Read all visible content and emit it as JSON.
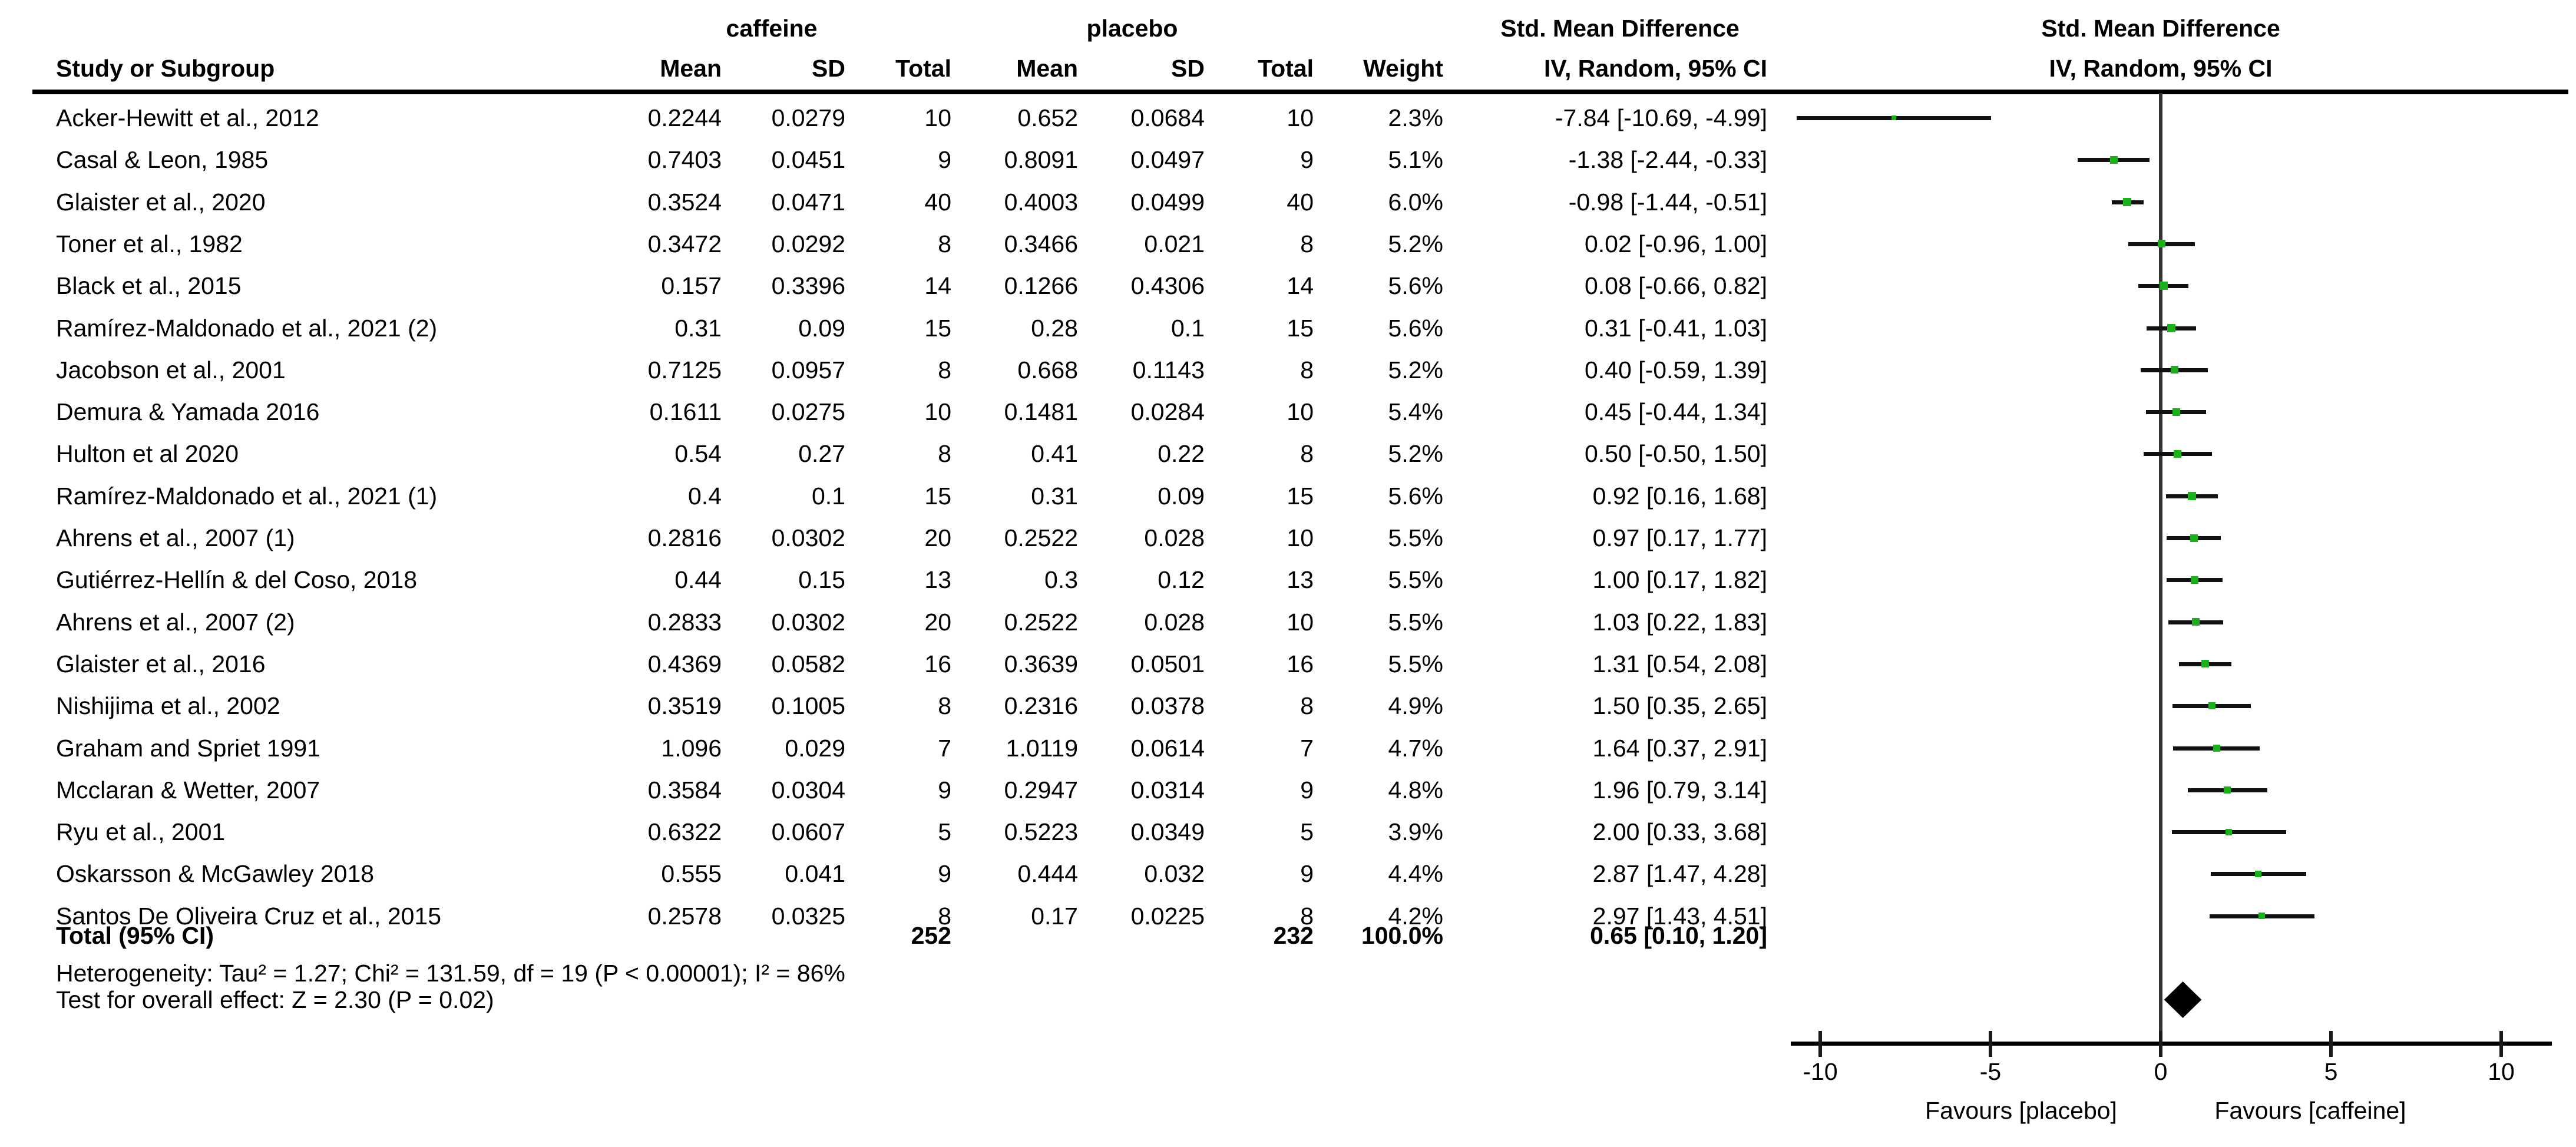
{
  "figure": {
    "col_headers": {
      "study": "Study or Subgroup",
      "mean": "Mean",
      "sd": "SD",
      "total": "Total",
      "weight": "Weight"
    },
    "group1_label": "caffeine",
    "group2_label": "placebo",
    "smd_label": "Std. Mean Difference",
    "method_label": "IV, Random, 95% CI",
    "heterogeneity": "Heterogeneity: Tau² = 1.27; Chi² = 131.59, df = 19 (P < 0.00001); I² = 86%",
    "overall_effect": "Test for overall effect: Z = 2.30 (P = 0.02)"
  },
  "plot": {
    "axis_ticks": [
      "-10",
      "-5",
      "0",
      "5",
      "10"
    ],
    "tick_values": [
      -10,
      -5,
      0,
      5,
      10
    ],
    "favours_left": "Favours [placebo]",
    "favours_right": "Favours [caffeine]",
    "marker_color": "#1bb11b",
    "line_color": "#111111",
    "diamond_color": "#000000"
  },
  "chart_data": {
    "type": "scatter",
    "note": "forest plot (meta-analysis, std. mean difference with 95% CI)",
    "title": "Std. Mean Difference — IV, Random, 95% CI (caffeine vs placebo)",
    "xlim": [
      -10,
      10
    ],
    "xticks": [
      -10,
      -5,
      0,
      5,
      10
    ],
    "xlabel_left": "Favours [placebo]",
    "xlabel_right": "Favours [caffeine]",
    "studies": [
      {
        "name": "Acker-Hewitt et al., 2012",
        "c_mean": "0.2244",
        "c_sd": "0.0279",
        "c_total": "10",
        "p_mean": "0.652",
        "p_sd": "0.0684",
        "p_total": "10",
        "weight": "2.3%",
        "ci": "-7.84 [-10.69, -4.99]",
        "est": -7.84,
        "lo": -10.69,
        "hi": -4.99
      },
      {
        "name": "Casal & Leon, 1985",
        "c_mean": "0.7403",
        "c_sd": "0.0451",
        "c_total": "9",
        "p_mean": "0.8091",
        "p_sd": "0.0497",
        "p_total": "9",
        "weight": "5.1%",
        "ci": "-1.38 [-2.44, -0.33]",
        "est": -1.38,
        "lo": -2.44,
        "hi": -0.33
      },
      {
        "name": "Glaister et al., 2020",
        "c_mean": "0.3524",
        "c_sd": "0.0471",
        "c_total": "40",
        "p_mean": "0.4003",
        "p_sd": "0.0499",
        "p_total": "40",
        "weight": "6.0%",
        "ci": "-0.98 [-1.44, -0.51]",
        "est": -0.98,
        "lo": -1.44,
        "hi": -0.51
      },
      {
        "name": "Toner et al., 1982",
        "c_mean": "0.3472",
        "c_sd": "0.0292",
        "c_total": "8",
        "p_mean": "0.3466",
        "p_sd": "0.021",
        "p_total": "8",
        "weight": "5.2%",
        "ci": "0.02 [-0.96, 1.00]",
        "est": 0.02,
        "lo": -0.96,
        "hi": 1.0
      },
      {
        "name": "Black et al., 2015",
        "c_mean": "0.157",
        "c_sd": "0.3396",
        "c_total": "14",
        "p_mean": "0.1266",
        "p_sd": "0.4306",
        "p_total": "14",
        "weight": "5.6%",
        "ci": "0.08 [-0.66, 0.82]",
        "est": 0.08,
        "lo": -0.66,
        "hi": 0.82
      },
      {
        "name": "Ramírez-Maldonado et al., 2021 (2)",
        "c_mean": "0.31",
        "c_sd": "0.09",
        "c_total": "15",
        "p_mean": "0.28",
        "p_sd": "0.1",
        "p_total": "15",
        "weight": "5.6%",
        "ci": "0.31 [-0.41, 1.03]",
        "est": 0.31,
        "lo": -0.41,
        "hi": 1.03
      },
      {
        "name": "Jacobson et al., 2001",
        "c_mean": "0.7125",
        "c_sd": "0.0957",
        "c_total": "8",
        "p_mean": "0.668",
        "p_sd": "0.1143",
        "p_total": "8",
        "weight": "5.2%",
        "ci": "0.40 [-0.59, 1.39]",
        "est": 0.4,
        "lo": -0.59,
        "hi": 1.39
      },
      {
        "name": "Demura & Yamada 2016",
        "c_mean": "0.1611",
        "c_sd": "0.0275",
        "c_total": "10",
        "p_mean": "0.1481",
        "p_sd": "0.0284",
        "p_total": "10",
        "weight": "5.4%",
        "ci": "0.45 [-0.44, 1.34]",
        "est": 0.45,
        "lo": -0.44,
        "hi": 1.34
      },
      {
        "name": "Hulton et al 2020",
        "c_mean": "0.54",
        "c_sd": "0.27",
        "c_total": "8",
        "p_mean": "0.41",
        "p_sd": "0.22",
        "p_total": "8",
        "weight": "5.2%",
        "ci": "0.50 [-0.50, 1.50]",
        "est": 0.5,
        "lo": -0.5,
        "hi": 1.5
      },
      {
        "name": "Ramírez-Maldonado et al., 2021 (1)",
        "c_mean": "0.4",
        "c_sd": "0.1",
        "c_total": "15",
        "p_mean": "0.31",
        "p_sd": "0.09",
        "p_total": "15",
        "weight": "5.6%",
        "ci": "0.92 [0.16, 1.68]",
        "est": 0.92,
        "lo": 0.16,
        "hi": 1.68
      },
      {
        "name": "Ahrens et al., 2007 (1)",
        "c_mean": "0.2816",
        "c_sd": "0.0302",
        "c_total": "20",
        "p_mean": "0.2522",
        "p_sd": "0.028",
        "p_total": "10",
        "weight": "5.5%",
        "ci": "0.97 [0.17, 1.77]",
        "est": 0.97,
        "lo": 0.17,
        "hi": 1.77
      },
      {
        "name": "Gutiérrez-Hellín & del Coso, 2018",
        "c_mean": "0.44",
        "c_sd": "0.15",
        "c_total": "13",
        "p_mean": "0.3",
        "p_sd": "0.12",
        "p_total": "13",
        "weight": "5.5%",
        "ci": "1.00 [0.17, 1.82]",
        "est": 1.0,
        "lo": 0.17,
        "hi": 1.82
      },
      {
        "name": "Ahrens et al., 2007 (2)",
        "c_mean": "0.2833",
        "c_sd": "0.0302",
        "c_total": "20",
        "p_mean": "0.2522",
        "p_sd": "0.028",
        "p_total": "10",
        "weight": "5.5%",
        "ci": "1.03 [0.22, 1.83]",
        "est": 1.03,
        "lo": 0.22,
        "hi": 1.83
      },
      {
        "name": "Glaister et al., 2016",
        "c_mean": "0.4369",
        "c_sd": "0.0582",
        "c_total": "16",
        "p_mean": "0.3639",
        "p_sd": "0.0501",
        "p_total": "16",
        "weight": "5.5%",
        "ci": "1.31 [0.54, 2.08]",
        "est": 1.31,
        "lo": 0.54,
        "hi": 2.08
      },
      {
        "name": "Nishijima et al., 2002",
        "c_mean": "0.3519",
        "c_sd": "0.1005",
        "c_total": "8",
        "p_mean": "0.2316",
        "p_sd": "0.0378",
        "p_total": "8",
        "weight": "4.9%",
        "ci": "1.50 [0.35, 2.65]",
        "est": 1.5,
        "lo": 0.35,
        "hi": 2.65
      },
      {
        "name": "Graham and Spriet 1991",
        "c_mean": "1.096",
        "c_sd": "0.029",
        "c_total": "7",
        "p_mean": "1.0119",
        "p_sd": "0.0614",
        "p_total": "7",
        "weight": "4.7%",
        "ci": "1.64 [0.37, 2.91]",
        "est": 1.64,
        "lo": 0.37,
        "hi": 2.91
      },
      {
        "name": "Mcclaran & Wetter, 2007",
        "c_mean": "0.3584",
        "c_sd": "0.0304",
        "c_total": "9",
        "p_mean": "0.2947",
        "p_sd": "0.0314",
        "p_total": "9",
        "weight": "4.8%",
        "ci": "1.96 [0.79, 3.14]",
        "est": 1.96,
        "lo": 0.79,
        "hi": 3.14
      },
      {
        "name": "Ryu et al., 2001",
        "c_mean": "0.6322",
        "c_sd": "0.0607",
        "c_total": "5",
        "p_mean": "0.5223",
        "p_sd": "0.0349",
        "p_total": "5",
        "weight": "3.9%",
        "ci": "2.00 [0.33, 3.68]",
        "est": 2.0,
        "lo": 0.33,
        "hi": 3.68
      },
      {
        "name": "Oskarsson & McGawley 2018",
        "c_mean": "0.555",
        "c_sd": "0.041",
        "c_total": "9",
        "p_mean": "0.444",
        "p_sd": "0.032",
        "p_total": "9",
        "weight": "4.4%",
        "ci": "2.87 [1.47, 4.28]",
        "est": 2.87,
        "lo": 1.47,
        "hi": 4.28
      },
      {
        "name": "Santos De Oliveira Cruz et al., 2015",
        "c_mean": "0.2578",
        "c_sd": "0.0325",
        "c_total": "8",
        "p_mean": "0.17",
        "p_sd": "0.0225",
        "p_total": "8",
        "weight": "4.2%",
        "ci": "2.97 [1.43, 4.51]",
        "est": 2.97,
        "lo": 1.43,
        "hi": 4.51
      }
    ],
    "total": {
      "label": "Total (95% CI)",
      "c_total": "252",
      "p_total": "232",
      "weight": "100.0%",
      "ci": "0.65 [0.10, 1.20]",
      "est": 0.65,
      "lo": 0.1,
      "hi": 1.2
    }
  }
}
